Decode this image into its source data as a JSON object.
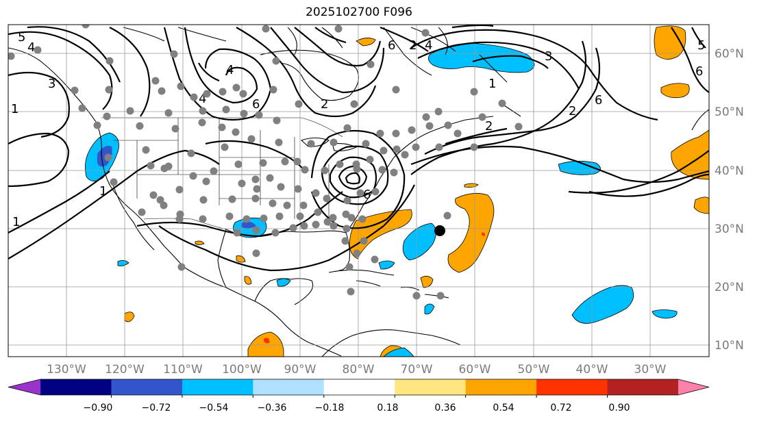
{
  "title": "2025102700 F096",
  "lon_labels": [
    "130°W",
    "120°W",
    "110°W",
    "100°W",
    "90°W",
    "80°W",
    "70°W",
    "60°W",
    "50°W",
    "40°W",
    "30°W"
  ],
  "lat_labels": [
    "60°N",
    "50°N",
    "40°N",
    "30°N",
    "20°N",
    "10°N"
  ],
  "colorbar": {
    "ticks": [
      "−0.90",
      "−0.72",
      "−0.54",
      "−0.36",
      "−0.18",
      "0.18",
      "0.36",
      "0.54",
      "0.72",
      "0.90"
    ],
    "colors": [
      "#9933cc",
      "#000080",
      "#3355cc",
      "#00bfff",
      "#b0e0ff",
      "#ffffff",
      "#ffe680",
      "#ffa500",
      "#ff3300",
      "#b22222",
      "#ff80aa"
    ]
  },
  "contour_labels": [
    "5",
    "4",
    "6",
    "2",
    "1",
    "6",
    "4",
    "2",
    "1",
    "2",
    "3",
    "6",
    "4",
    "4",
    "6",
    "1",
    "1",
    "6",
    "5",
    "3",
    "2"
  ],
  "fill_colors": {
    "negative_light": "#00bfff",
    "negative_strong": "#3355cc",
    "positive_light": "#ffa500",
    "positive_strong": "#ff3300"
  },
  "marker_colors": {
    "gray_dot": "#808080",
    "black_dot": "#000000"
  }
}
